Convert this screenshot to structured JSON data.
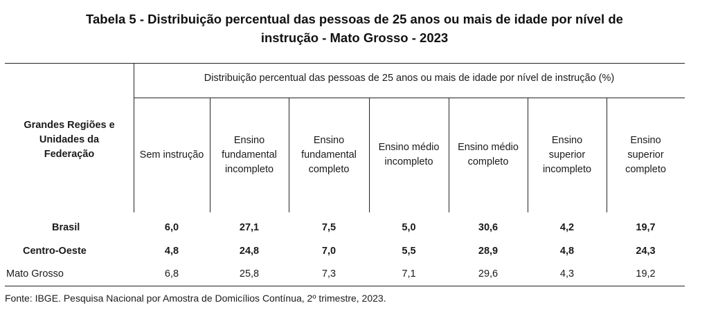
{
  "title": {
    "line1": "Tabela 5 - Distribuição percentual das pessoas de 25 anos ou mais de idade por nível de",
    "line2": "instrução - Mato Grosso - 2023"
  },
  "table": {
    "stub_header": "Grandes Regiões e\nUnidades da\nFederação",
    "super_header": "Distribuição percentual das pessoas de 25 anos ou mais de idade por nível de instrução (%)",
    "columns": [
      "Sem instrução",
      "Ensino\nfundamental\nincompleto",
      "Ensino\nfundamental\ncompleto",
      "Ensino médio\nincompleto",
      "Ensino médio\ncompleto",
      "Ensino\nsuperior\nincompleto",
      "Ensino\nsuperior\ncompleto"
    ],
    "rows": [
      {
        "label": "Brasil",
        "bold": true,
        "values": [
          "6,0",
          "27,1",
          "7,5",
          "5,0",
          "30,6",
          "4,2",
          "19,7"
        ]
      },
      {
        "label": "Centro-Oeste",
        "bold": true,
        "values": [
          "4,8",
          "24,8",
          "7,0",
          "5,5",
          "28,9",
          "4,8",
          "24,3"
        ]
      },
      {
        "label": "Mato Grosso",
        "bold": false,
        "values": [
          "6,8",
          "25,8",
          "7,3",
          "7,1",
          "29,6",
          "4,3",
          "19,2"
        ]
      }
    ]
  },
  "footnote": "Fonte: IBGE. Pesquisa Nacional por Amostra de Domicílios Contínua, 2º trimestre, 2023."
}
